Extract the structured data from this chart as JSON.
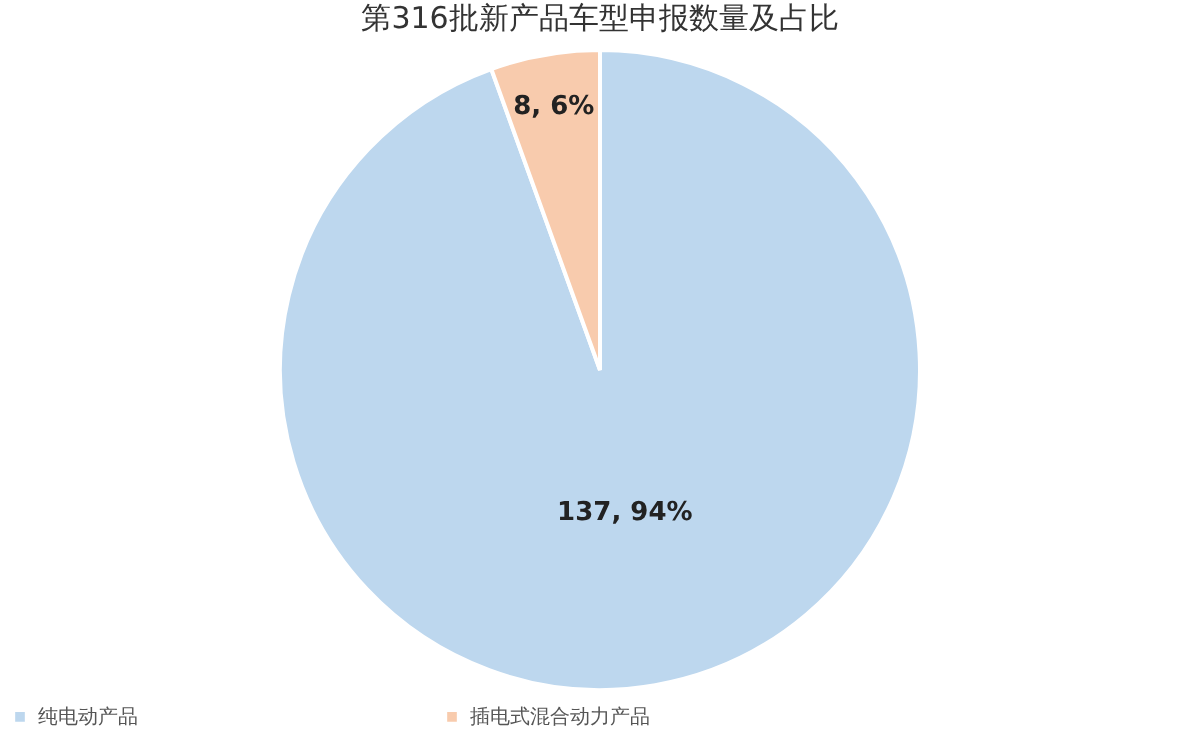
{
  "chart_data": {
    "type": "pie",
    "title": "第316批新产品车型申报数量及占比",
    "categories": [
      "纯电动产品",
      "插电式混合动力产品"
    ],
    "values": [
      137,
      8
    ],
    "colors": [
      "#bdd7ee",
      "#f8cbad"
    ],
    "value_labels": [
      "137, 94%",
      "8, 6%"
    ],
    "legend": "bottom"
  }
}
